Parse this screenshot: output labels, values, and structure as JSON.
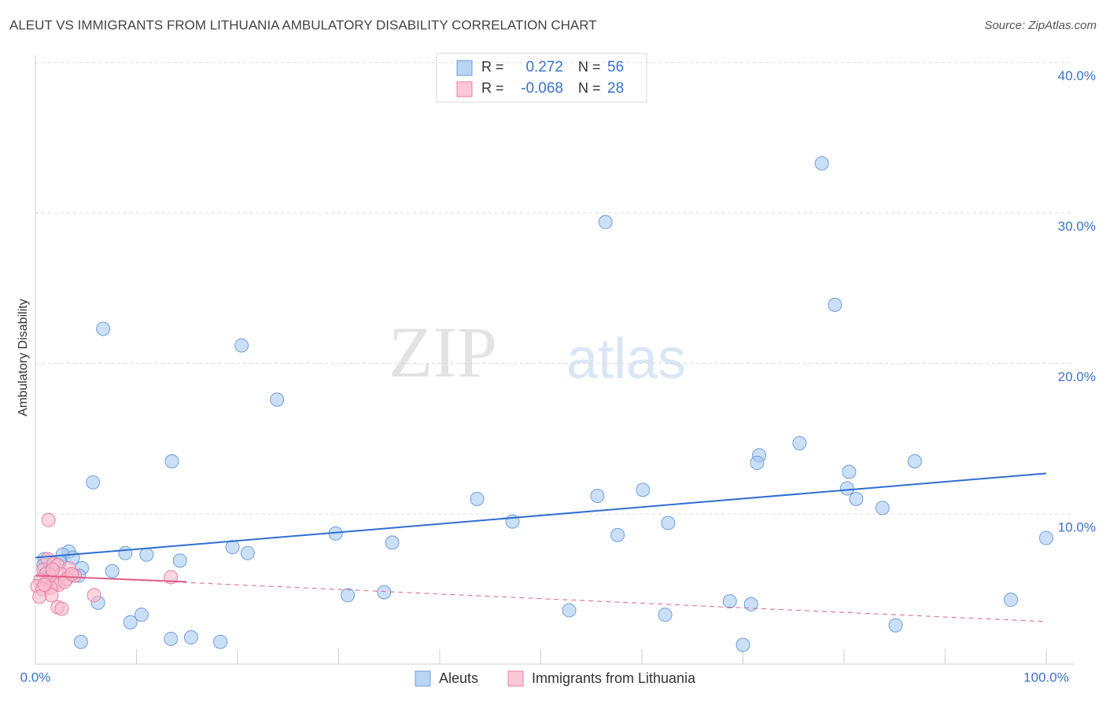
{
  "chart_data": {
    "type": "scatter",
    "title": "ALEUT VS IMMIGRANTS FROM LITHUANIA AMBULATORY DISABILITY CORRELATION CHART",
    "source": "Source: ZipAtlas.com",
    "watermark": [
      "ZIP",
      "atlas"
    ],
    "ylabel": "Ambulatory Disability",
    "xlim": [
      0,
      100
    ],
    "ylim": [
      0,
      40.5
    ],
    "xticks": [
      {
        "value": 0,
        "label": "0.0%"
      },
      {
        "value": 100,
        "label": "100.0%"
      }
    ],
    "xtick_marks": [
      0,
      10,
      20,
      30,
      40,
      50,
      60,
      70,
      80,
      90,
      100
    ],
    "yticks": [
      {
        "value": 10,
        "label": "10.0%"
      },
      {
        "value": 20,
        "label": "20.0%"
      },
      {
        "value": 30,
        "label": "30.0%"
      },
      {
        "value": 40,
        "label": "40.0%"
      }
    ],
    "grid": true,
    "legend_stats": [
      {
        "r_label": "R =",
        "r": 0.272,
        "n_label": "N =",
        "n": 56
      },
      {
        "r_label": "R =",
        "r": -0.068,
        "n_label": "N =",
        "n": 28
      }
    ],
    "series": [
      {
        "name": "Aleuts",
        "color": "#a9c9f1",
        "edge": "#6f9fdc",
        "line_color": "#2f6fd0",
        "trend_style": "solid",
        "x": [
          77.8,
          56.4,
          79.1,
          6.7,
          20.4,
          23.9,
          75.6,
          71.6,
          71.4,
          13.5,
          87.0,
          80.5,
          5.7,
          80.3,
          60.1,
          55.6,
          43.7,
          81.2,
          83.8,
          47.2,
          62.6,
          29.7,
          57.6,
          100.0,
          35.3,
          19.5,
          21.0,
          8.9,
          11.0,
          3.3,
          2.7,
          3.7,
          14.3,
          0.9,
          4.6,
          7.6,
          4.3,
          30.9,
          34.5,
          6.2,
          68.7,
          70.8,
          96.5,
          52.8,
          10.5,
          62.3,
          9.4,
          85.1,
          13.4,
          15.4,
          18.3,
          4.5,
          70.0,
          0.8,
          1.2,
          2.4
        ],
        "values": [
          33.3,
          29.4,
          23.9,
          22.3,
          21.2,
          17.6,
          14.7,
          13.9,
          13.4,
          13.5,
          13.5,
          12.8,
          12.1,
          11.7,
          11.6,
          11.2,
          11.0,
          11.0,
          10.4,
          9.5,
          9.4,
          8.7,
          8.6,
          8.4,
          8.1,
          7.8,
          7.4,
          7.4,
          7.3,
          7.5,
          7.3,
          7.1,
          6.9,
          7.0,
          6.4,
          6.2,
          5.9,
          4.6,
          4.8,
          4.1,
          4.2,
          4.0,
          4.3,
          3.6,
          3.3,
          3.3,
          2.8,
          2.6,
          1.7,
          1.8,
          1.5,
          1.5,
          1.3,
          6.6,
          6.1,
          6.8
        ],
        "trend": {
          "x": [
            0,
            100
          ],
          "values": [
            7.1,
            12.7
          ]
        }
      },
      {
        "name": "Immigrants from Lithuania",
        "color": "#f9bacd",
        "edge": "#e87fa0",
        "line_color": "#e0608a",
        "trend_style": "solid-then-dashed",
        "x": [
          1.3,
          1.2,
          1.8,
          2.2,
          0.8,
          3.3,
          1.0,
          1.6,
          2.6,
          3.9,
          0.5,
          1.2,
          2.0,
          0.2,
          2.3,
          1.5,
          0.7,
          3.1,
          13.4,
          5.8,
          1.6,
          0.4,
          2.2,
          2.6,
          0.9,
          2.9,
          1.7,
          3.6
        ],
        "values": [
          9.6,
          7.0,
          6.7,
          6.6,
          6.3,
          6.4,
          6.0,
          5.9,
          6.0,
          5.9,
          5.6,
          5.5,
          5.4,
          5.2,
          5.3,
          5.1,
          5.0,
          5.7,
          5.8,
          4.6,
          4.6,
          4.5,
          3.8,
          3.7,
          5.3,
          5.5,
          6.3,
          6.0
        ],
        "trend": {
          "x": [
            0,
            100
          ],
          "values": [
            5.9,
            2.85
          ]
        }
      }
    ]
  }
}
